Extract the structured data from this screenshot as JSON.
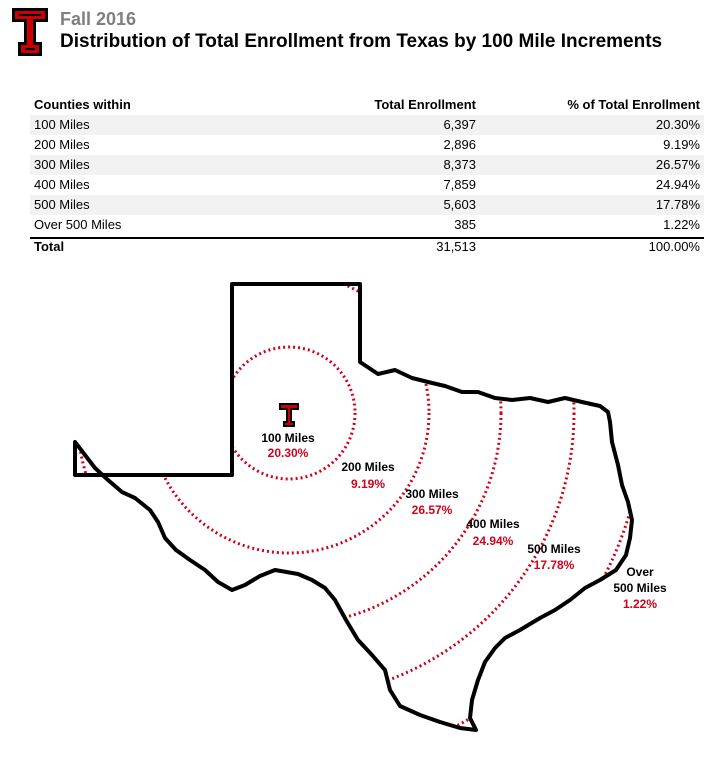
{
  "header": {
    "subtitle": "Fall 2016",
    "title": "Distribution of Total Enrollment from Texas by 100 Mile Increments"
  },
  "table": {
    "columns": [
      "Counties within",
      "Total Enrollment",
      "% of Total Enrollment"
    ],
    "rows": [
      {
        "label": "100 Miles",
        "enrollment": "6,397",
        "percent": "20.30%"
      },
      {
        "label": "200 Miles",
        "enrollment": "2,896",
        "percent": "9.19%"
      },
      {
        "label": "300 Miles",
        "enrollment": "8,373",
        "percent": "26.57%"
      },
      {
        "label": "400 Miles",
        "enrollment": "7,859",
        "percent": "24.94%"
      },
      {
        "label": "500 Miles",
        "enrollment": "5,603",
        "percent": "17.78%"
      },
      {
        "label": "Over 500 Miles",
        "enrollment": "385",
        "percent": "1.22%"
      }
    ],
    "total": {
      "label": "Total",
      "enrollment": "31,513",
      "percent": "100.00%"
    }
  },
  "map": {
    "zones": [
      {
        "label": "100 Miles",
        "percent": "20.30%"
      },
      {
        "label": "200 Miles",
        "percent": "9.19%"
      },
      {
        "label": "300 Miles",
        "percent": "26.57%"
      },
      {
        "label": "400 Miles",
        "percent": "24.94%"
      },
      {
        "label": "500 Miles",
        "percent": "17.78%"
      },
      {
        "label_line1": "Over",
        "label_line2": "500 Miles",
        "percent": "1.22%"
      }
    ]
  },
  "colors": {
    "logo_red": "#cc0000",
    "ring_red": "#d0021b",
    "subtitle_gray": "#7f7f7f",
    "stripe": "#f2f2f2"
  },
  "icons": [
    "texas-tech-logo-icon"
  ]
}
